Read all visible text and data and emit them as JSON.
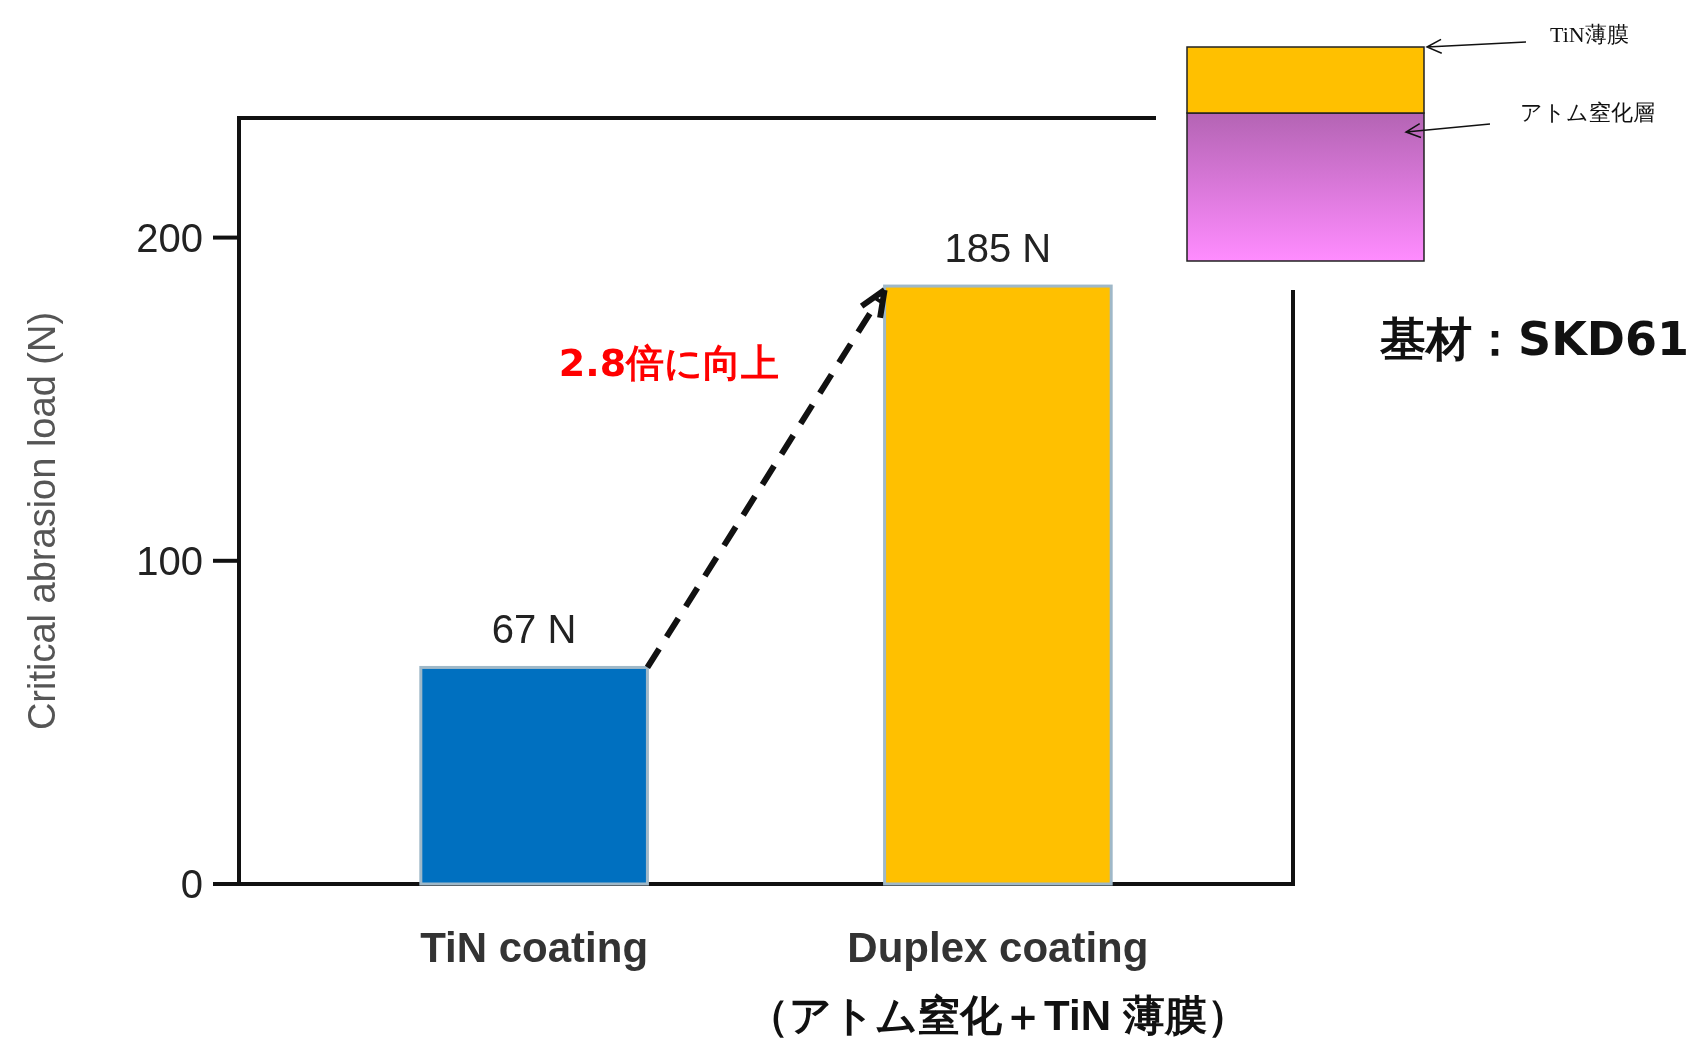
{
  "chart_data": {
    "type": "bar",
    "ylabel": "Critical abrasion load (N)",
    "categories": [
      "TiN coating",
      "Duplex coating\n（アトム窒化＋TiN 薄膜）"
    ],
    "values": [
      67,
      185
    ],
    "colors": [
      "#0070c0",
      "#ffc000"
    ],
    "value_labels": [
      "67 N",
      "185 N"
    ],
    "ylim": [
      0,
      237
    ],
    "yticks": [
      0,
      100,
      200
    ],
    "grid": false,
    "annotations": [
      "2.8倍に向上",
      "TiN薄膜",
      "アトム窒化層",
      "基材：SKD61"
    ]
  }
}
